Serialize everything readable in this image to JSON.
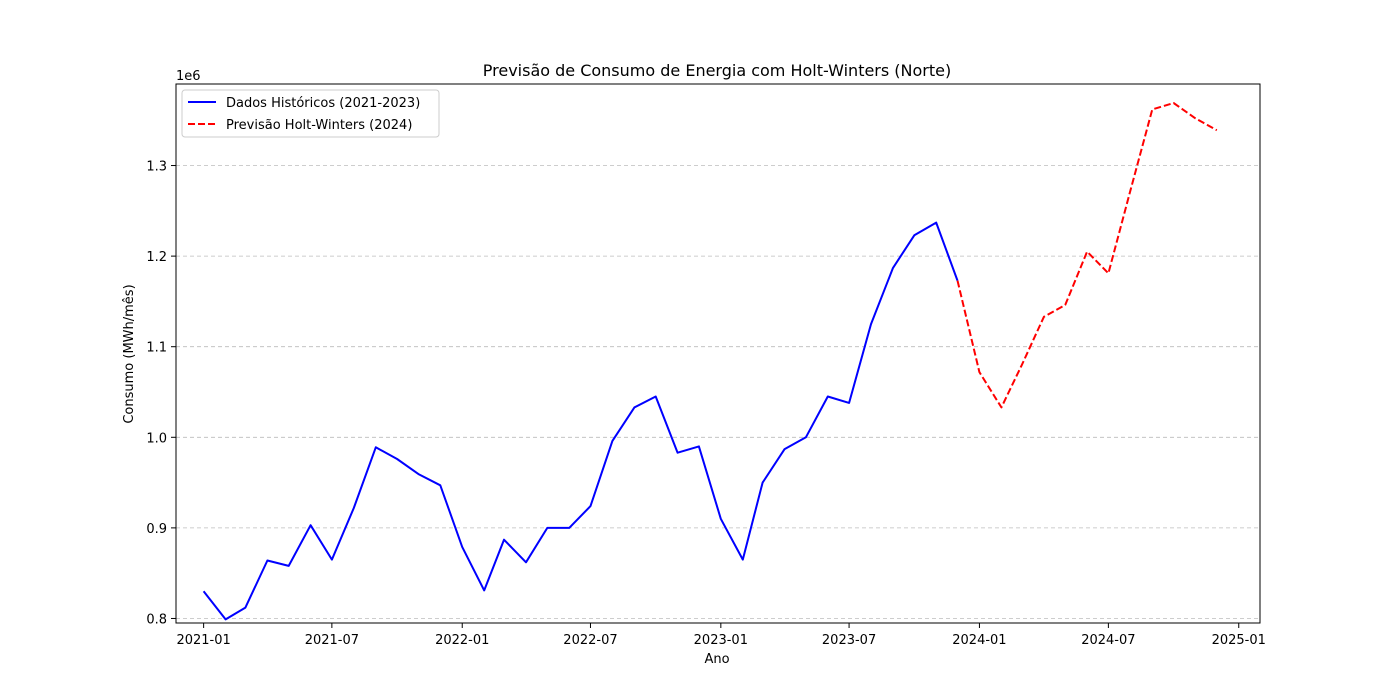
{
  "chart_data": {
    "type": "line",
    "title": "Previsão de Consumo de Energia com Holt-Winters (Norte)",
    "xlabel": "Ano",
    "ylabel": "Consumo (MWh/mês)",
    "y_offset_label": "1e6",
    "ylim": [
      0.795,
      1.39
    ],
    "xlim": [
      "2020-11-23",
      "2025-01-31"
    ],
    "grid": "y-dashed",
    "legend_position": "top-left",
    "x_ticks": [
      "2021-01",
      "2021-07",
      "2022-01",
      "2022-07",
      "2023-01",
      "2023-07",
      "2024-01",
      "2024-07",
      "2025-01"
    ],
    "y_ticks": [
      "0.8",
      "0.9",
      "1.0",
      "1.1",
      "1.2",
      "1.3"
    ],
    "series": [
      {
        "name": "Dados Históricos (2021-2023)",
        "color": "#0000ff",
        "style": "solid",
        "x": [
          "2021-01",
          "2021-02",
          "2021-03",
          "2021-04",
          "2021-05",
          "2021-06",
          "2021-07",
          "2021-08",
          "2021-09",
          "2021-10",
          "2021-11",
          "2021-12",
          "2022-01",
          "2022-02",
          "2022-03",
          "2022-04",
          "2022-05",
          "2022-06",
          "2022-07",
          "2022-08",
          "2022-09",
          "2022-10",
          "2022-11",
          "2022-12",
          "2023-01",
          "2023-02",
          "2023-03",
          "2023-04",
          "2023-05",
          "2023-06",
          "2023-07",
          "2023-08",
          "2023-09",
          "2023-10",
          "2023-11",
          "2023-12"
        ],
        "values": [
          0.83,
          0.799,
          0.812,
          0.864,
          0.858,
          0.903,
          0.865,
          0.922,
          0.989,
          0.976,
          0.959,
          0.947,
          0.879,
          0.831,
          0.887,
          0.862,
          0.9,
          0.9,
          0.924,
          0.996,
          1.033,
          1.045,
          0.983,
          0.99,
          0.91,
          0.865,
          0.95,
          0.987,
          1.0,
          1.045,
          1.038,
          1.125,
          1.187,
          1.223,
          1.237,
          1.173
        ]
      },
      {
        "name": "Previsão Holt-Winters (2024)",
        "color": "#ff0000",
        "style": "dashed",
        "x": [
          "2023-12",
          "2024-01",
          "2024-02",
          "2024-03",
          "2024-04",
          "2024-05",
          "2024-06",
          "2024-07",
          "2024-08",
          "2024-09",
          "2024-10",
          "2024-11",
          "2024-12"
        ],
        "values": [
          1.173,
          1.072,
          1.033,
          1.08,
          1.133,
          1.146,
          1.205,
          1.181,
          1.272,
          1.362,
          1.369,
          1.352,
          1.339
        ]
      }
    ]
  }
}
